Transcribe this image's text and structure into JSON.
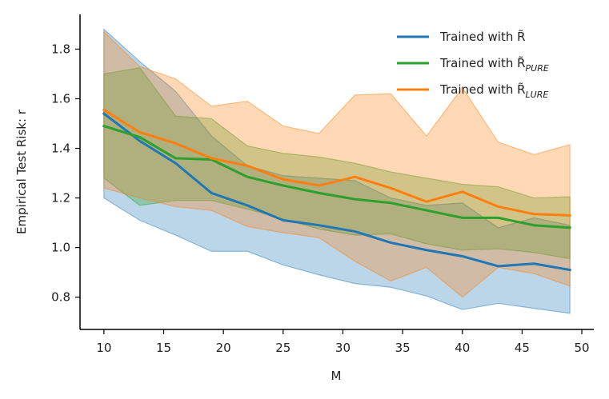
{
  "chart_data": {
    "type": "line",
    "title": "",
    "xlabel": "M",
    "ylabel": "Empirical Test Risk: r",
    "xlim": [
      8,
      51
    ],
    "ylim": [
      0.67,
      1.94
    ],
    "xticks": [
      10,
      15,
      20,
      25,
      30,
      35,
      40,
      45,
      50
    ],
    "xtick_labels": [
      "10",
      "15",
      "20",
      "25",
      "30",
      "35",
      "40",
      "45",
      "50"
    ],
    "yticks": [
      0.8,
      1.0,
      1.2,
      1.4,
      1.6,
      1.8
    ],
    "ytick_labels": [
      "0.8",
      "1.0",
      "1.2",
      "1.4",
      "1.6",
      "1.8"
    ],
    "grid": false,
    "legend_position": "top-right",
    "x": [
      10,
      13,
      16,
      19,
      22,
      25,
      28,
      31,
      34,
      37,
      40,
      43,
      46,
      49
    ],
    "series": [
      {
        "name": "Trained with R̃",
        "legend_main": "Trained with R̃",
        "legend_sub": "",
        "color": "#1f77b4",
        "values": [
          1.54,
          1.43,
          1.34,
          1.22,
          1.17,
          1.11,
          1.09,
          1.065,
          1.02,
          0.99,
          0.965,
          0.925,
          0.935,
          0.91
        ],
        "lower": [
          1.2,
          1.11,
          1.05,
          0.985,
          0.985,
          0.93,
          0.89,
          0.855,
          0.84,
          0.805,
          0.75,
          0.775,
          0.755,
          0.735
        ],
        "upper": [
          1.88,
          1.75,
          1.63,
          1.45,
          1.33,
          1.29,
          1.28,
          1.27,
          1.2,
          1.17,
          1.18,
          1.08,
          1.12,
          1.09
        ]
      },
      {
        "name": "Trained with R̃_PURE",
        "legend_main": "Trained with R̃",
        "legend_sub": "PURE",
        "color": "#2ca02c",
        "values": [
          1.49,
          1.445,
          1.36,
          1.355,
          1.285,
          1.25,
          1.22,
          1.195,
          1.18,
          1.15,
          1.12,
          1.12,
          1.09,
          1.08
        ],
        "lower": [
          1.28,
          1.17,
          1.19,
          1.19,
          1.155,
          1.115,
          1.075,
          1.05,
          1.055,
          1.015,
          0.99,
          0.995,
          0.98,
          0.955
        ],
        "upper": [
          1.7,
          1.725,
          1.53,
          1.52,
          1.41,
          1.38,
          1.365,
          1.34,
          1.305,
          1.28,
          1.255,
          1.245,
          1.2,
          1.205
        ]
      },
      {
        "name": "Trained with R̃_LURE",
        "legend_main": "Trained with R̃",
        "legend_sub": "LURE",
        "color": "#ff7f0e",
        "values": [
          1.555,
          1.465,
          1.42,
          1.36,
          1.33,
          1.275,
          1.25,
          1.285,
          1.24,
          1.185,
          1.225,
          1.165,
          1.135,
          1.13
        ],
        "lower": [
          1.24,
          1.2,
          1.165,
          1.15,
          1.085,
          1.06,
          1.04,
          0.945,
          0.865,
          0.92,
          0.8,
          0.92,
          0.895,
          0.845
        ],
        "upper": [
          1.87,
          1.73,
          1.68,
          1.57,
          1.59,
          1.49,
          1.46,
          1.615,
          1.62,
          1.45,
          1.645,
          1.425,
          1.375,
          1.415
        ]
      }
    ]
  }
}
